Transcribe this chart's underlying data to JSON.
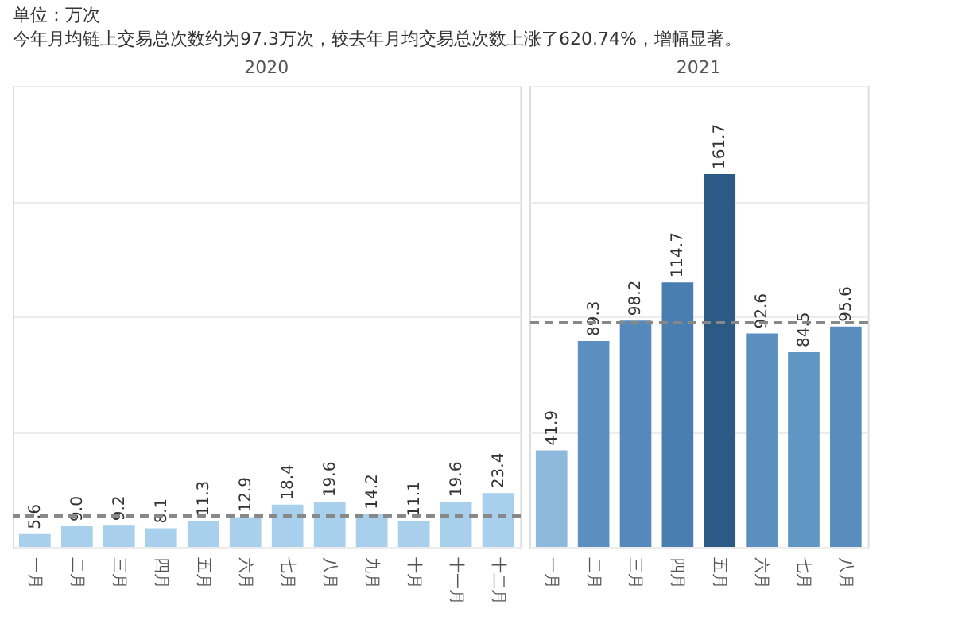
{
  "chart_data": [
    {
      "type": "bar",
      "title": "2020",
      "annotations": [
        "单位：万次",
        "今年月均链上交易总次数约为97.3万次，较去年月均交易总次数上涨了620.74%，增幅显著。"
      ],
      "categories": [
        "一月",
        "二月",
        "三月",
        "四月",
        "五月",
        "六月",
        "七月",
        "八月",
        "九月",
        "十月",
        "十一月",
        "十二月"
      ],
      "values": [
        5.6,
        9.0,
        9.2,
        8.1,
        11.3,
        12.9,
        18.4,
        19.6,
        14.2,
        11.1,
        19.6,
        23.4
      ],
      "value_labels": [
        "5.6",
        "9.0",
        "9.2",
        "8.1",
        "11.3",
        "12.9",
        "18.4",
        "19.6",
        "14.2",
        "11.1",
        "19.6",
        "23.4"
      ],
      "colors": [
        "#a8cfeb",
        "#a8cfeb",
        "#a8cfeb",
        "#a8cfeb",
        "#a8cfeb",
        "#a8cfeb",
        "#a8cfeb",
        "#a8cfeb",
        "#a8cfeb",
        "#a8cfeb",
        "#a8cfeb",
        "#a8cfeb"
      ],
      "ylim": [
        0,
        200
      ],
      "yticks": [
        {
          "value": 0,
          "label": null
        },
        {
          "value": 50,
          "label": null
        },
        {
          "value": 100,
          "label": null
        },
        {
          "value": 150,
          "label": null
        },
        {
          "value": 200,
          "label": null
        }
      ],
      "grid": "y",
      "tick_labels": "x",
      "ref_lines": [
        {
          "axis": "y",
          "value": 13.5,
          "label": null,
          "color": "#888888",
          "line_style": "dashed"
        }
      ]
    },
    {
      "type": "bar",
      "title": "2021",
      "categories": [
        "一月",
        "二月",
        "三月",
        "四月",
        "五月",
        "六月",
        "七月",
        "八月"
      ],
      "values": [
        41.9,
        89.3,
        98.2,
        114.7,
        161.7,
        92.6,
        84.5,
        95.6
      ],
      "value_labels": [
        "41.9",
        "89.3",
        "98.2",
        "114.7",
        "161.7",
        "92.6",
        "84.5",
        "95.6"
      ],
      "colors": [
        "#8db9dd",
        "#5a8fc0",
        "#5589bb",
        "#4a7db0",
        "#2b5a85",
        "#5a8fc0",
        "#6096c4",
        "#588dbe"
      ],
      "ylim": [
        0,
        200
      ],
      "yticks": [
        {
          "value": 0,
          "label": null
        },
        {
          "value": 50,
          "label": null
        },
        {
          "value": 100,
          "label": null
        },
        {
          "value": 150,
          "label": null
        },
        {
          "value": 200,
          "label": null
        }
      ],
      "grid": "y",
      "tick_labels": "x",
      "ref_lines": [
        {
          "axis": "y",
          "value": 97.3,
          "label": null,
          "color": "#888888",
          "line_style": "dashed"
        }
      ]
    }
  ]
}
